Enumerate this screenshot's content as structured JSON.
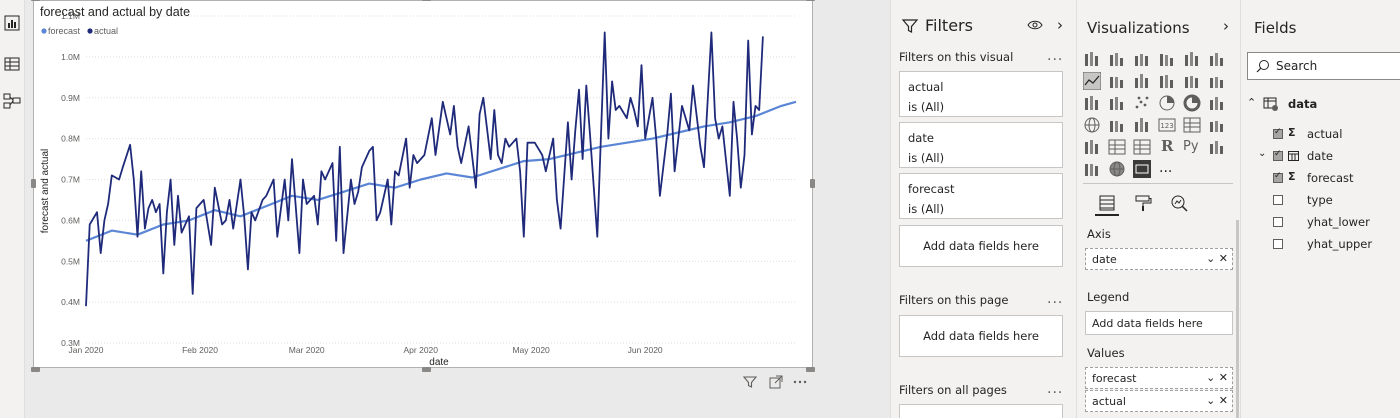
{
  "left_rail": {
    "icons": [
      "report-icon",
      "table-icon",
      "model-icon"
    ]
  },
  "visual": {
    "title": "forecast and actual by date",
    "legend": [
      "forecast",
      "actual"
    ],
    "visual_header_icons": [
      "filter-icon",
      "focus-mode-icon",
      "more-options-icon"
    ]
  },
  "chart_data": {
    "type": "line",
    "title": "forecast and actual by date",
    "xlabel": "date",
    "ylabel": "forecast and actual",
    "x_ticks": [
      "Jan 2020",
      "Feb 2020",
      "Mar 2020",
      "Apr 2020",
      "May 2020",
      "Jun 2020"
    ],
    "y_ticks": [
      "0.3M",
      "0.4M",
      "0.5M",
      "0.6M",
      "0.7M",
      "0.8M",
      "0.9M",
      "1.0M",
      "1.1M"
    ],
    "ylim": [
      300000,
      1100000
    ],
    "x_range_days": [
      0,
      193
    ],
    "legend_position": "top-left",
    "colors": {
      "forecast": "#5b86d6",
      "actual": "#1f2b7a"
    },
    "series": [
      {
        "name": "forecast",
        "points": [
          [
            0,
            550000
          ],
          [
            7,
            575000
          ],
          [
            14,
            565000
          ],
          [
            21,
            590000
          ],
          [
            28,
            600000
          ],
          [
            35,
            625000
          ],
          [
            42,
            610000
          ],
          [
            49,
            635000
          ],
          [
            56,
            660000
          ],
          [
            63,
            650000
          ],
          [
            70,
            670000
          ],
          [
            77,
            690000
          ],
          [
            84,
            680000
          ],
          [
            91,
            700000
          ],
          [
            98,
            715000
          ],
          [
            105,
            705000
          ],
          [
            112,
            725000
          ],
          [
            119,
            745000
          ],
          [
            126,
            750000
          ],
          [
            133,
            765000
          ],
          [
            140,
            780000
          ],
          [
            147,
            790000
          ],
          [
            154,
            800000
          ],
          [
            161,
            815000
          ],
          [
            168,
            830000
          ],
          [
            175,
            840000
          ],
          [
            182,
            855000
          ],
          [
            189,
            880000
          ],
          [
            193,
            890000
          ]
        ]
      },
      {
        "name": "actual",
        "points": [
          [
            0,
            390000
          ],
          [
            1,
            590000
          ],
          [
            3,
            620000
          ],
          [
            4,
            520000
          ],
          [
            5,
            600000
          ],
          [
            6,
            640000
          ],
          [
            7,
            710000
          ],
          [
            9,
            700000
          ],
          [
            10,
            730000
          ],
          [
            12,
            785000
          ],
          [
            13,
            700000
          ],
          [
            14,
            560000
          ],
          [
            15,
            720000
          ],
          [
            16,
            580000
          ],
          [
            17,
            630000
          ],
          [
            18,
            650000
          ],
          [
            19,
            620000
          ],
          [
            20,
            640000
          ],
          [
            21,
            470000
          ],
          [
            22,
            620000
          ],
          [
            23,
            700000
          ],
          [
            24,
            540000
          ],
          [
            25,
            660000
          ],
          [
            26,
            570000
          ],
          [
            28,
            610000
          ],
          [
            29,
            420000
          ],
          [
            30,
            630000
          ],
          [
            32,
            650000
          ],
          [
            34,
            540000
          ],
          [
            35,
            680000
          ],
          [
            37,
            590000
          ],
          [
            38,
            600000
          ],
          [
            39,
            650000
          ],
          [
            40,
            580000
          ],
          [
            42,
            700000
          ],
          [
            43,
            610000
          ],
          [
            44,
            480000
          ],
          [
            45,
            620000
          ],
          [
            46,
            600000
          ],
          [
            48,
            650000
          ],
          [
            49,
            660000
          ],
          [
            51,
            700000
          ],
          [
            52,
            560000
          ],
          [
            54,
            700000
          ],
          [
            55,
            600000
          ],
          [
            56,
            750000
          ],
          [
            58,
            520000
          ],
          [
            59,
            700000
          ],
          [
            60,
            640000
          ],
          [
            62,
            660000
          ],
          [
            63,
            590000
          ],
          [
            64,
            720000
          ],
          [
            65,
            700000
          ],
          [
            67,
            740000
          ],
          [
            68,
            550000
          ],
          [
            69,
            780000
          ],
          [
            70,
            520000
          ],
          [
            72,
            700000
          ],
          [
            73,
            640000
          ],
          [
            74,
            670000
          ],
          [
            75,
            730000
          ],
          [
            77,
            770000
          ],
          [
            78,
            780000
          ],
          [
            79,
            600000
          ],
          [
            80,
            620000
          ],
          [
            82,
            700000
          ],
          [
            83,
            590000
          ],
          [
            84,
            720000
          ],
          [
            85,
            710000
          ],
          [
            87,
            800000
          ],
          [
            88,
            680000
          ],
          [
            89,
            760000
          ],
          [
            90,
            740000
          ],
          [
            92,
            760000
          ],
          [
            94,
            850000
          ],
          [
            95,
            760000
          ],
          [
            97,
            890000
          ],
          [
            98,
            850000
          ],
          [
            99,
            810000
          ],
          [
            100,
            880000
          ],
          [
            101,
            780000
          ],
          [
            102,
            740000
          ],
          [
            104,
            830000
          ],
          [
            106,
            680000
          ],
          [
            107,
            860000
          ],
          [
            108,
            900000
          ],
          [
            110,
            750000
          ],
          [
            111,
            870000
          ],
          [
            112,
            760000
          ],
          [
            113,
            740000
          ],
          [
            114,
            800000
          ],
          [
            115,
            780000
          ],
          [
            117,
            800000
          ],
          [
            118,
            720000
          ],
          [
            119,
            560000
          ],
          [
            120,
            790000
          ],
          [
            122,
            790000
          ],
          [
            124,
            760000
          ],
          [
            125,
            720000
          ],
          [
            127,
            800000
          ],
          [
            128,
            650000
          ],
          [
            129,
            580000
          ],
          [
            131,
            840000
          ],
          [
            132,
            700000
          ],
          [
            133,
            820000
          ],
          [
            134,
            920000
          ],
          [
            135,
            750000
          ],
          [
            136,
            930000
          ],
          [
            137,
            810000
          ],
          [
            139,
            560000
          ],
          [
            141,
            1060000
          ],
          [
            142,
            800000
          ],
          [
            143,
            940000
          ],
          [
            144,
            870000
          ],
          [
            145,
            880000
          ],
          [
            147,
            850000
          ],
          [
            148,
            900000
          ],
          [
            149,
            870000
          ],
          [
            150,
            830000
          ],
          [
            151,
            980000
          ],
          [
            152,
            800000
          ],
          [
            154,
            900000
          ],
          [
            155,
            800000
          ],
          [
            156,
            660000
          ],
          [
            158,
            810000
          ],
          [
            159,
            910000
          ],
          [
            160,
            720000
          ],
          [
            162,
            880000
          ],
          [
            164,
            820000
          ],
          [
            165,
            930000
          ],
          [
            167,
            780000
          ],
          [
            168,
            730000
          ],
          [
            170,
            1060000
          ],
          [
            171,
            850000
          ],
          [
            172,
            800000
          ],
          [
            173,
            830000
          ],
          [
            175,
            660000
          ],
          [
            176,
            890000
          ],
          [
            177,
            800000
          ],
          [
            178,
            680000
          ],
          [
            179,
            760000
          ],
          [
            180,
            1040000
          ],
          [
            181,
            810000
          ],
          [
            182,
            880000
          ],
          [
            183,
            870000
          ],
          [
            184,
            1050000
          ]
        ]
      }
    ]
  },
  "filters": {
    "title": "Filters",
    "section_visual": "Filters on this visual",
    "cards": [
      {
        "field": "actual",
        "state": "is (All)"
      },
      {
        "field": "date",
        "state": "is (All)"
      },
      {
        "field": "forecast",
        "state": "is (All)"
      }
    ],
    "add_fields": "Add data fields here",
    "section_page": "Filters on this page",
    "add_fields_page": "Add data fields here",
    "section_all": "Filters on all pages",
    "more": "..."
  },
  "visualizations": {
    "title": "Visualizations",
    "more_visuals": "...",
    "axis_label": "Axis",
    "axis_field": "date",
    "legend_label": "Legend",
    "legend_placeholder": "Add data fields here",
    "values_label": "Values",
    "values_fields": [
      "forecast",
      "actual"
    ],
    "r_glyph": "R",
    "py_glyph": "Py"
  },
  "fields": {
    "title": "Fields",
    "search_placeholder": "Search",
    "table_name": "data",
    "items": [
      {
        "name": "actual",
        "checked": true,
        "type": "sigma"
      },
      {
        "name": "date",
        "checked": true,
        "type": "calendar"
      },
      {
        "name": "forecast",
        "checked": true,
        "type": "sigma"
      },
      {
        "name": "type",
        "checked": false,
        "type": ""
      },
      {
        "name": "yhat_lower",
        "checked": false,
        "type": ""
      },
      {
        "name": "yhat_upper",
        "checked": false,
        "type": ""
      }
    ]
  }
}
